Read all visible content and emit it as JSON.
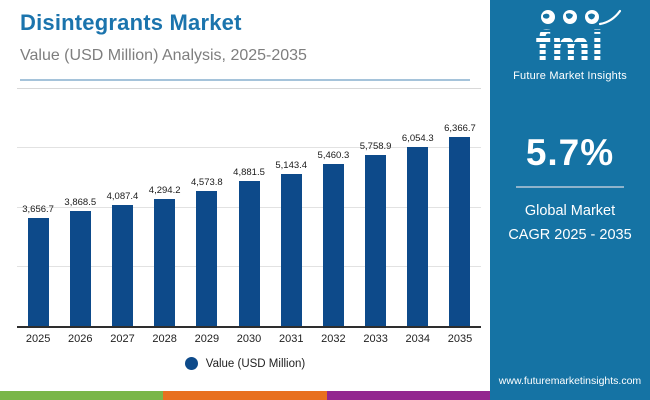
{
  "header": {
    "title": "Disintegrants Market",
    "subtitle": "Value (USD Million) Analysis, 2025-2035"
  },
  "chart_data": {
    "type": "bar",
    "title": "Disintegrants Market",
    "subtitle": "Value (USD Million) Analysis, 2025-2035",
    "categories": [
      "2025",
      "2026",
      "2027",
      "2028",
      "2029",
      "2030",
      "2031",
      "2032",
      "2033",
      "2034",
      "2035"
    ],
    "values": [
      3656.7,
      3868.5,
      4087.4,
      4294.2,
      4573.8,
      4881.5,
      5143.4,
      5460.3,
      5758.9,
      6054.3,
      6366.7
    ],
    "value_labels": [
      "3,656.7",
      "3,868.5",
      "4,087.4",
      "4,294.2",
      "4,573.8",
      "4,881.5",
      "5,143.4",
      "5,460.3",
      "5,758.9",
      "6,054.3",
      "6,366.7"
    ],
    "xlabel": "",
    "ylabel": "",
    "ylim": [
      0,
      8000
    ],
    "grid_step": 2000,
    "grid": "on",
    "legend_label": "Value (USD Million)",
    "legend_position": "bottom"
  },
  "sidebar": {
    "logo": {
      "brand": "fmi",
      "tagline": "Future Market Insights",
      "icons": [
        "globe-map-icon",
        "globe-map-icon",
        "globe-map-icon",
        "swoosh-arc"
      ]
    },
    "cagr": {
      "value": "5.7%",
      "label_line1": "Global Market",
      "label_line2": "CAGR 2025 - 2035"
    },
    "website": "www.futuremarketinsights.com"
  },
  "colors": {
    "title_accent": "#1b74ad",
    "bar": "#0d4a8a",
    "sidebar_background": "#1573a4",
    "header_divider": "#a5c3da",
    "footer_strip": [
      "#7ab648",
      "#e8701f",
      "#93278f"
    ]
  }
}
